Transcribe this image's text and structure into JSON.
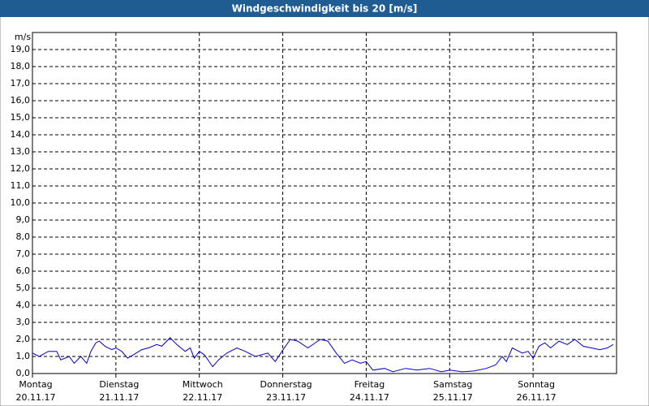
{
  "chart_data": {
    "type": "line",
    "title": "Windgeschwindigkeit bis 20 [m/s]",
    "y_label": "m/s",
    "xlim": [
      0,
      7
    ],
    "xticks": [
      {
        "value": 0,
        "label": "Montag",
        "date": "20.11.17"
      },
      {
        "value": 1,
        "label": "Dienstag",
        "date": "21.11.17"
      },
      {
        "value": 2,
        "label": "Mittwoch",
        "date": "22.11.17"
      },
      {
        "value": 3,
        "label": "Donnerstag",
        "date": "23.11.17"
      },
      {
        "value": 4,
        "label": "Freitag",
        "date": "24.11.17"
      },
      {
        "value": 5,
        "label": "Samstag",
        "date": "25.11.17"
      },
      {
        "value": 6,
        "label": "Sonntag",
        "date": "26.11.17"
      }
    ],
    "ylim": [
      0,
      20
    ],
    "yticks": [
      {
        "value": 0,
        "label": "0,0"
      },
      {
        "value": 1,
        "label": "1,0"
      },
      {
        "value": 2,
        "label": "2,0"
      },
      {
        "value": 3,
        "label": "3,0"
      },
      {
        "value": 4,
        "label": "4,0"
      },
      {
        "value": 5,
        "label": "5,0"
      },
      {
        "value": 6,
        "label": "6,0"
      },
      {
        "value": 7,
        "label": "7,0"
      },
      {
        "value": 8,
        "label": "8,0"
      },
      {
        "value": 9,
        "label": "9,0"
      },
      {
        "value": 10,
        "label": "10,0"
      },
      {
        "value": 11,
        "label": "11,0"
      },
      {
        "value": 12,
        "label": "12,0"
      },
      {
        "value": 13,
        "label": "13,0"
      },
      {
        "value": 14,
        "label": "14,0"
      },
      {
        "value": 15,
        "label": "15,0"
      },
      {
        "value": 16,
        "label": "16,0"
      },
      {
        "value": 17,
        "label": "17,0"
      },
      {
        "value": 18,
        "label": "18,0"
      },
      {
        "value": 19,
        "label": "19,0"
      }
    ],
    "grid": true,
    "series": [
      {
        "color": "#0000cc",
        "x": [
          0,
          0.08,
          0.19,
          0.29,
          0.34,
          0.44,
          0.5,
          0.58,
          0.65,
          0.7,
          0.76,
          0.8,
          0.87,
          0.95,
          1.0,
          1.07,
          1.14,
          1.21,
          1.31,
          1.39,
          1.49,
          1.55,
          1.65,
          1.73,
          1.83,
          1.89,
          1.94,
          2.0,
          2.06,
          2.16,
          2.23,
          2.33,
          2.45,
          2.55,
          2.67,
          2.82,
          2.91,
          2.99,
          3.09,
          3.18,
          3.3,
          3.45,
          3.54,
          3.64,
          3.74,
          3.83,
          3.93,
          4.0,
          4.08,
          4.22,
          4.32,
          4.47,
          4.61,
          4.76,
          4.9,
          5.0,
          5.15,
          5.29,
          5.44,
          5.55,
          5.63,
          5.68,
          5.75,
          5.87,
          5.94,
          6.0,
          6.07,
          6.14,
          6.21,
          6.31,
          6.41,
          6.5,
          6.6,
          6.7,
          6.8,
          6.89,
          6.96
        ],
        "values": [
          1.2,
          1.0,
          1.3,
          1.3,
          0.8,
          1.0,
          0.6,
          1.0,
          0.6,
          1.3,
          1.8,
          1.9,
          1.6,
          1.4,
          1.5,
          1.3,
          0.9,
          1.1,
          1.4,
          1.5,
          1.7,
          1.6,
          2.1,
          1.7,
          1.3,
          1.5,
          0.9,
          1.3,
          1.1,
          0.4,
          0.8,
          1.2,
          1.5,
          1.3,
          1.0,
          1.2,
          0.7,
          1.3,
          2.0,
          1.9,
          1.5,
          2.0,
          1.9,
          1.2,
          0.6,
          0.8,
          0.6,
          0.7,
          0.2,
          0.3,
          0.1,
          0.3,
          0.2,
          0.3,
          0.1,
          0.2,
          0.1,
          0.15,
          0.3,
          0.5,
          1.0,
          0.7,
          1.5,
          1.2,
          1.3,
          0.9,
          1.6,
          1.8,
          1.5,
          1.9,
          1.7,
          2.0,
          1.6,
          1.5,
          1.4,
          1.5,
          1.7
        ]
      }
    ]
  }
}
